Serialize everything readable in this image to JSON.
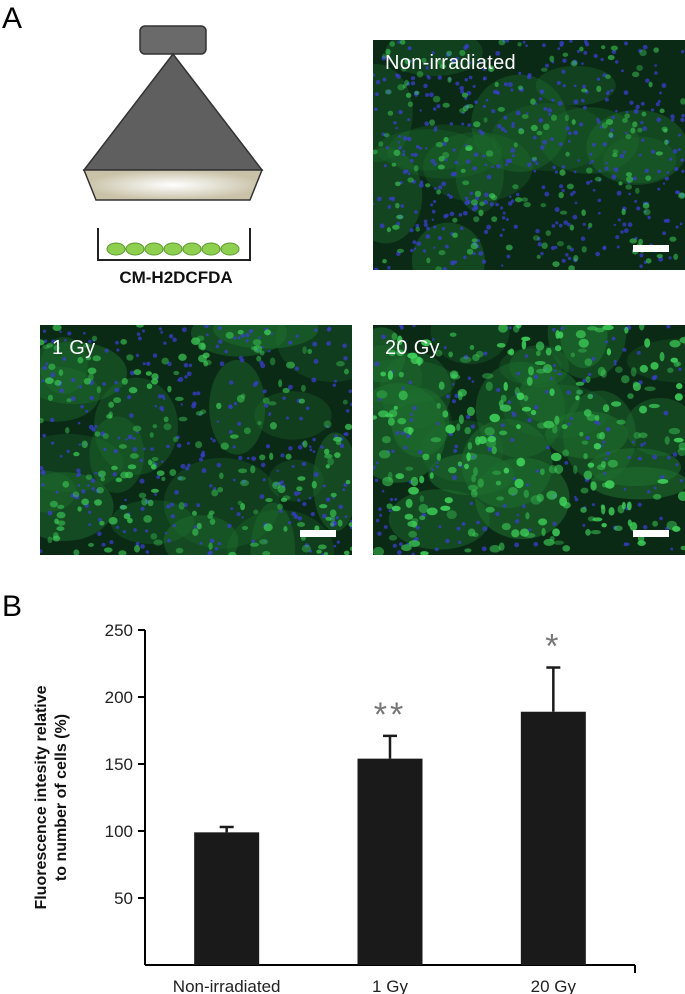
{
  "panels": {
    "a_letter": "A",
    "b_letter": "B"
  },
  "schematic": {
    "dye_label": "CM-H2DCFDA",
    "lamp_color": "#5f5f5f",
    "cell_color": "#8fcf4f"
  },
  "micrographs": [
    {
      "label": "Non-irradiated",
      "brightness": 0.45
    },
    {
      "label": "1 Gy",
      "brightness": 0.65
    },
    {
      "label": "20 Gy",
      "brightness": 0.95
    }
  ],
  "colors": {
    "bar": "#1a1a1a",
    "asterisk": "#777777",
    "cell_green": "#3fd25a",
    "nucleus_blue": "#3a3fd0"
  },
  "chart_data": {
    "type": "bar",
    "categories": [
      "Non-irradiated",
      "1 Gy",
      "20 Gy"
    ],
    "values": [
      99,
      154,
      189
    ],
    "errors": [
      4,
      17,
      33
    ],
    "significance": [
      "",
      "**",
      "*"
    ],
    "title": "",
    "xlabel": "",
    "ylabel_lines": [
      "Fluorescence intesity relative",
      "to number of cells (%)"
    ],
    "ylim": [
      0,
      250
    ],
    "yticks": [
      50,
      100,
      150,
      200,
      250
    ],
    "grid": false,
    "legend": false
  }
}
